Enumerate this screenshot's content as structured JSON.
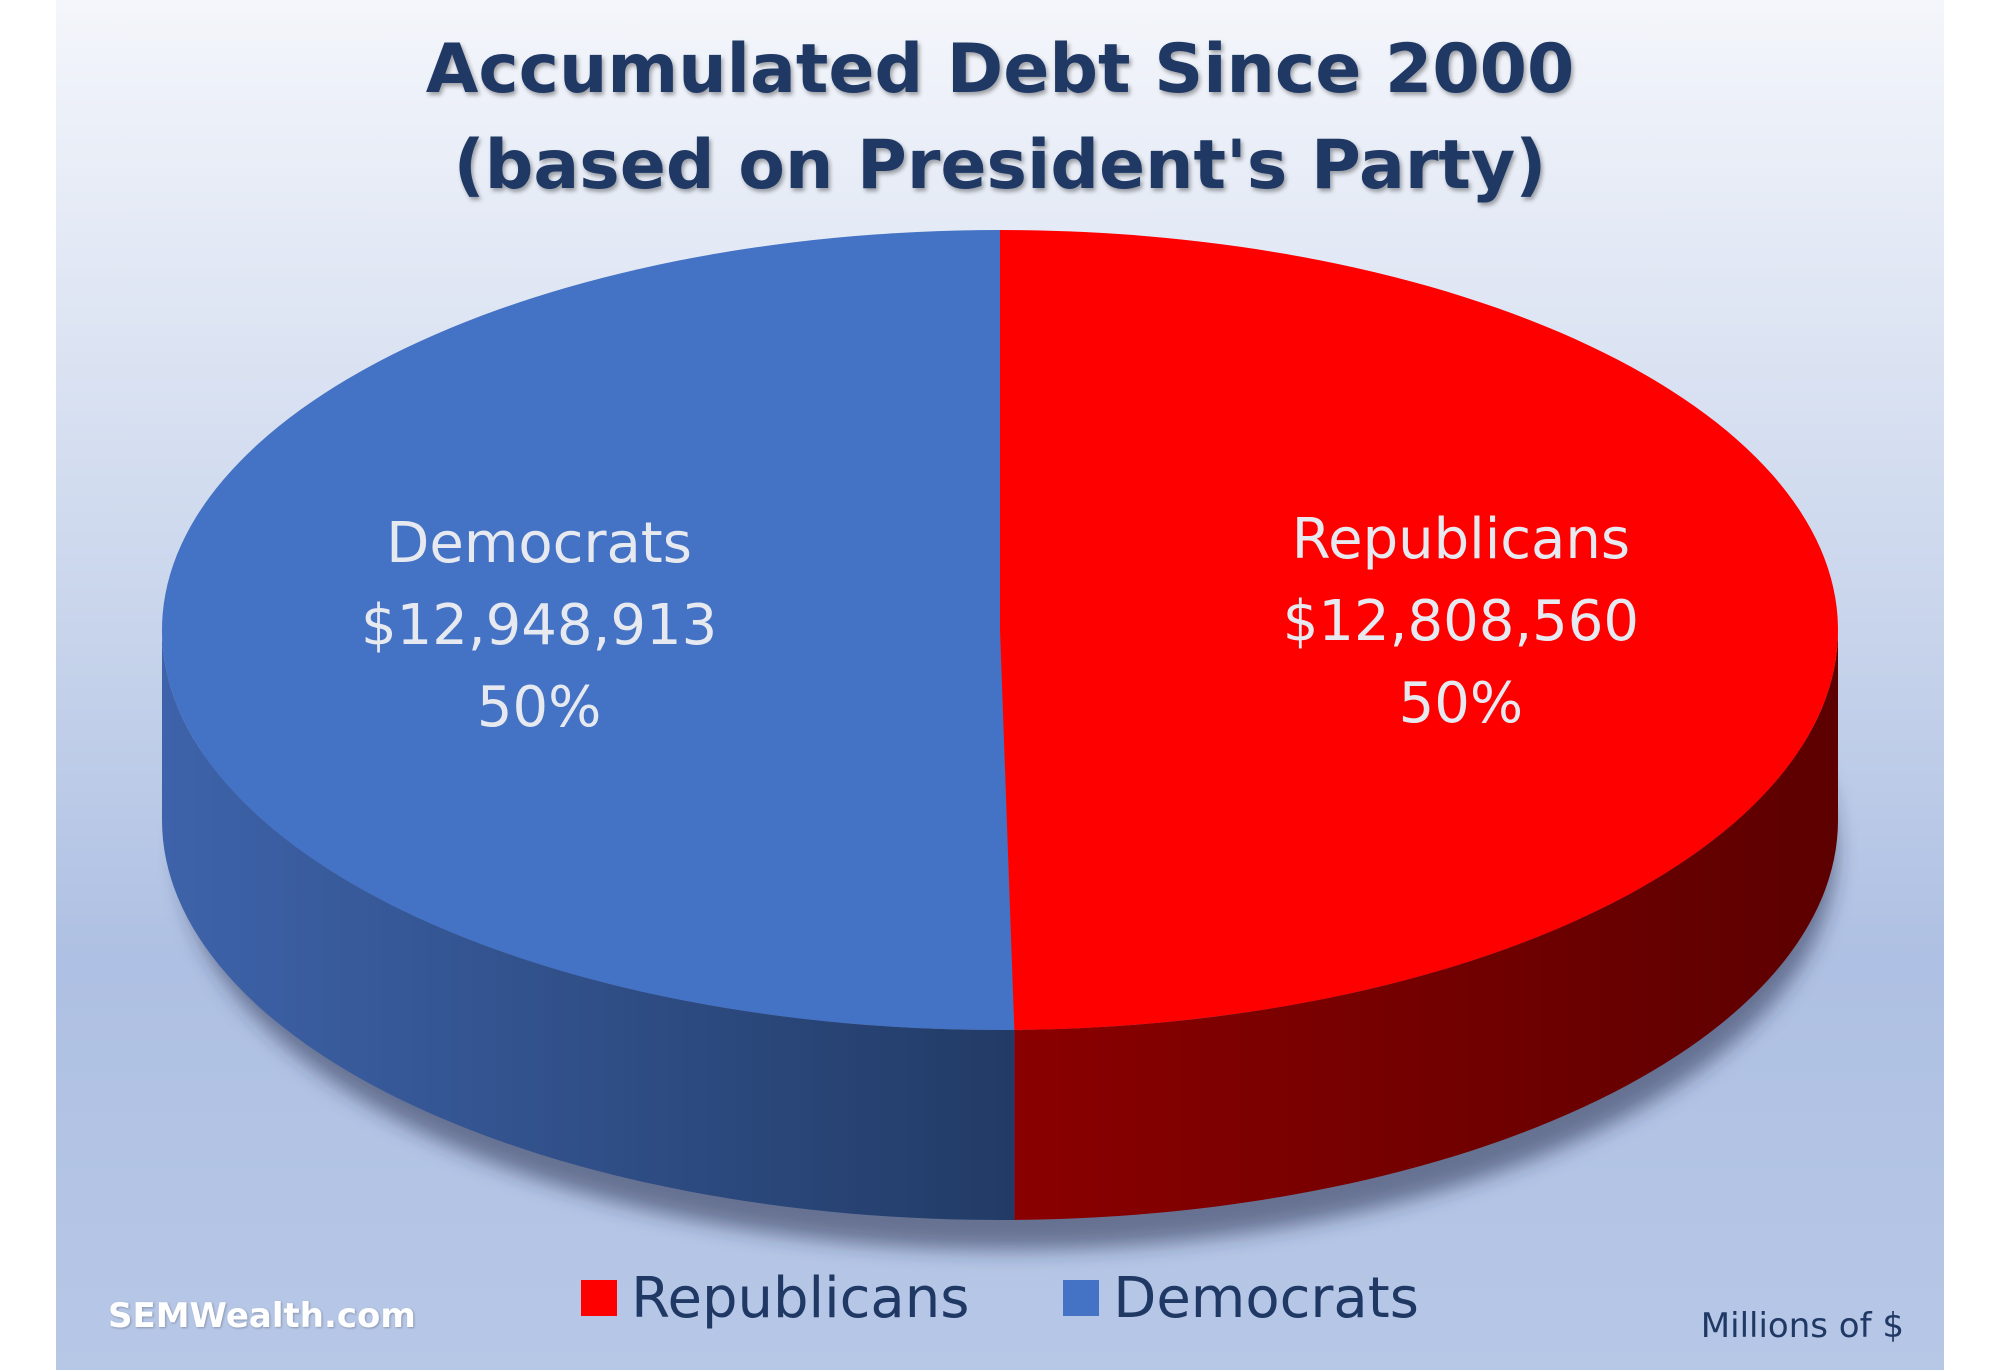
{
  "chart_data": {
    "type": "pie",
    "title_lines": [
      "Accumulated Debt Since 2000",
      "(based on President's Party)"
    ],
    "slices": [
      {
        "name": "Democrats",
        "value": 12948913,
        "value_label": "$12,948,913",
        "percent_label": "50%",
        "color": "#4472c4"
      },
      {
        "name": "Republicans",
        "value": 12808560,
        "value_label": "$12,808,560",
        "percent_label": "50%",
        "color": "#ff0000"
      }
    ],
    "legend": [
      {
        "name": "Republicans",
        "color": "#ff0000"
      },
      {
        "name": "Democrats",
        "color": "#4472c4"
      }
    ],
    "legend_position": "bottom",
    "style": "3d"
  },
  "footer": {
    "credit": "SEMWealth.com",
    "units": "Millions of $"
  }
}
